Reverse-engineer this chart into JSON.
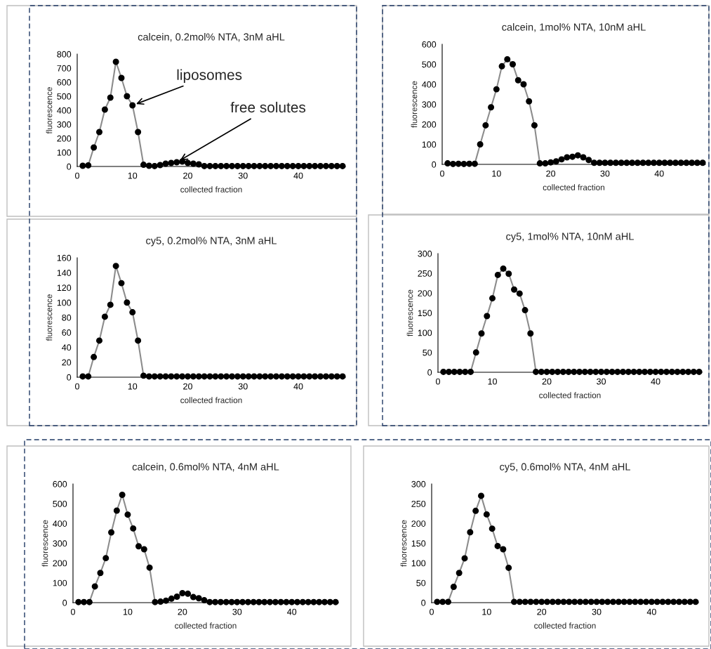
{
  "chart_data": [
    {
      "type": "line",
      "title": "calcein, 0.2mol% NTA, 3nM aHL",
      "xlabel": "collected fraction",
      "ylabel": "fluorescence",
      "marker": "circle",
      "xlim": [
        0,
        48.5
      ],
      "xticks": [
        0,
        10,
        20,
        30,
        40
      ],
      "ylim": [
        0,
        800
      ],
      "yticks": [
        0,
        100,
        200,
        300,
        400,
        500,
        600,
        700,
        800
      ],
      "grid": false,
      "legend": false,
      "x": [
        1,
        2,
        3,
        4,
        5,
        6,
        7,
        8,
        9,
        10,
        11,
        12,
        13,
        14,
        15,
        16,
        17,
        18,
        19,
        20,
        21,
        22,
        23,
        24,
        25,
        26,
        27,
        28,
        29,
        30,
        31,
        32,
        33,
        34,
        35,
        36,
        37,
        38,
        39,
        40,
        41,
        42,
        43,
        44,
        45,
        46,
        47,
        48
      ],
      "series": [
        {
          "color": "#000000",
          "values": [
            5,
            8,
            135,
            245,
            405,
            490,
            745,
            630,
            500,
            435,
            245,
            12,
            5,
            3,
            10,
            20,
            25,
            30,
            35,
            25,
            20,
            15,
            3,
            3,
            3,
            3,
            3,
            3,
            3,
            3,
            3,
            3,
            3,
            3,
            3,
            3,
            3,
            3,
            3,
            3,
            3,
            3,
            3,
            3,
            3,
            3,
            3,
            3
          ]
        }
      ],
      "annotations": [
        {
          "text": "liposomes",
          "x": 10,
          "y": 435
        },
        {
          "text": "free solutes",
          "x": 18,
          "y": 30
        }
      ]
    },
    {
      "type": "line",
      "title": "calcein, 1mol% NTA, 10nM aHL",
      "xlabel": "collected fraction",
      "ylabel": "fluorescence",
      "marker": "circle",
      "xlim": [
        0,
        48.5
      ],
      "xticks": [
        0,
        10,
        20,
        30,
        40
      ],
      "ylim": [
        0,
        600
      ],
      "yticks": [
        0,
        100,
        200,
        300,
        400,
        500,
        600
      ],
      "grid": false,
      "legend": false,
      "x": [
        1,
        2,
        3,
        4,
        5,
        6,
        7,
        8,
        9,
        10,
        11,
        12,
        13,
        14,
        15,
        16,
        17,
        18,
        19,
        20,
        21,
        22,
        23,
        24,
        25,
        26,
        27,
        28,
        29,
        30,
        31,
        32,
        33,
        34,
        35,
        36,
        37,
        38,
        39,
        40,
        41,
        42,
        43,
        44,
        45,
        46,
        47,
        48
      ],
      "series": [
        {
          "color": "#000000",
          "values": [
            5,
            2,
            3,
            2,
            3,
            3,
            100,
            195,
            285,
            375,
            490,
            525,
            500,
            420,
            400,
            315,
            195,
            5,
            5,
            10,
            15,
            25,
            35,
            38,
            45,
            35,
            22,
            8,
            8,
            8,
            8,
            8,
            8,
            8,
            8,
            8,
            8,
            8,
            8,
            8,
            8,
            8,
            8,
            8,
            8,
            8,
            8,
            8
          ]
        }
      ]
    },
    {
      "type": "line",
      "title": "cy5, 0.2mol% NTA, 3nM aHL",
      "xlabel": "collected fraction",
      "ylabel": "fluorescence",
      "marker": "circle",
      "xlim": [
        0,
        48.5
      ],
      "xticks": [
        0,
        10,
        20,
        30,
        40
      ],
      "ylim": [
        0,
        160
      ],
      "yticks": [
        0,
        20,
        40,
        60,
        80,
        100,
        120,
        140,
        160
      ],
      "grid": false,
      "legend": false,
      "x": [
        1,
        2,
        3,
        4,
        5,
        6,
        7,
        8,
        9,
        10,
        11,
        12,
        13,
        14,
        15,
        16,
        17,
        18,
        19,
        20,
        21,
        22,
        23,
        24,
        25,
        26,
        27,
        28,
        29,
        30,
        31,
        32,
        33,
        34,
        35,
        36,
        37,
        38,
        39,
        40,
        41,
        42,
        43,
        44,
        45,
        46,
        47,
        48
      ],
      "series": [
        {
          "color": "#000000",
          "values": [
            1,
            1,
            27,
            49,
            81,
            97,
            149,
            126,
            100,
            87,
            49,
            2,
            1,
            1,
            1,
            1,
            1,
            1,
            1,
            1,
            1,
            1,
            1,
            1,
            1,
            1,
            1,
            1,
            1,
            1,
            1,
            1,
            1,
            1,
            1,
            1,
            1,
            1,
            1,
            1,
            1,
            1,
            1,
            1,
            1,
            1,
            1,
            1
          ]
        }
      ]
    },
    {
      "type": "line",
      "title": "cy5, 1mol% NTA, 10nM aHL",
      "xlabel": "collected fraction",
      "ylabel": "fluorescence",
      "marker": "circle",
      "xlim": [
        0,
        48.5
      ],
      "xticks": [
        0,
        10,
        20,
        30,
        40
      ],
      "ylim": [
        0,
        300
      ],
      "yticks": [
        0,
        50,
        100,
        150,
        200,
        250,
        300
      ],
      "grid": false,
      "legend": false,
      "x": [
        1,
        2,
        3,
        4,
        5,
        6,
        7,
        8,
        9,
        10,
        11,
        12,
        13,
        14,
        15,
        16,
        17,
        18,
        19,
        20,
        21,
        22,
        23,
        24,
        25,
        26,
        27,
        28,
        29,
        30,
        31,
        32,
        33,
        34,
        35,
        36,
        37,
        38,
        39,
        40,
        41,
        42,
        43,
        44,
        45,
        46,
        47,
        48
      ],
      "series": [
        {
          "color": "#000000",
          "values": [
            1,
            1,
            1,
            1,
            1,
            1,
            50,
            98,
            142,
            187,
            246,
            262,
            249,
            209,
            199,
            157,
            98,
            1,
            1,
            1,
            1,
            1,
            1,
            1,
            1,
            1,
            1,
            1,
            1,
            1,
            1,
            1,
            1,
            1,
            1,
            1,
            1,
            1,
            1,
            1,
            1,
            1,
            1,
            1,
            1,
            1,
            1,
            1
          ]
        }
      ]
    },
    {
      "type": "line",
      "title": "calcein, 0.6mol% NTA, 4nM aHL",
      "xlabel": "collected fraction",
      "ylabel": "fluorescence",
      "marker": "circle",
      "xlim": [
        0,
        48.5
      ],
      "xticks": [
        0,
        10,
        20,
        30,
        40
      ],
      "ylim": [
        0,
        600
      ],
      "yticks": [
        0,
        100,
        200,
        300,
        400,
        500,
        600
      ],
      "grid": false,
      "legend": false,
      "x": [
        1,
        2,
        3,
        4,
        5,
        6,
        7,
        8,
        9,
        10,
        11,
        12,
        13,
        14,
        15,
        16,
        17,
        18,
        19,
        20,
        21,
        22,
        23,
        24,
        25,
        26,
        27,
        28,
        29,
        30,
        31,
        32,
        33,
        34,
        35,
        36,
        37,
        38,
        39,
        40,
        41,
        42,
        43,
        44,
        45,
        46,
        47,
        48
      ],
      "series": [
        {
          "color": "#000000",
          "values": [
            3,
            3,
            3,
            82,
            150,
            225,
            355,
            465,
            545,
            445,
            375,
            285,
            270,
            177,
            3,
            5,
            10,
            20,
            30,
            48,
            45,
            28,
            22,
            12,
            3,
            3,
            3,
            3,
            3,
            3,
            3,
            3,
            3,
            3,
            3,
            3,
            3,
            3,
            3,
            3,
            3,
            3,
            3,
            3,
            3,
            3,
            3,
            3
          ]
        }
      ]
    },
    {
      "type": "line",
      "title": "cy5, 0.6mol% NTA, 4nM aHL",
      "xlabel": "collected fraction",
      "ylabel": "fluorescence",
      "marker": "circle",
      "xlim": [
        0,
        48.5
      ],
      "xticks": [
        0,
        10,
        20,
        30,
        40
      ],
      "ylim": [
        0,
        300
      ],
      "yticks": [
        0,
        50,
        100,
        150,
        200,
        250,
        300
      ],
      "grid": false,
      "legend": false,
      "x": [
        1,
        2,
        3,
        4,
        5,
        6,
        7,
        8,
        9,
        10,
        11,
        12,
        13,
        14,
        15,
        16,
        17,
        18,
        19,
        20,
        21,
        22,
        23,
        24,
        25,
        26,
        27,
        28,
        29,
        30,
        31,
        32,
        33,
        34,
        35,
        36,
        37,
        38,
        39,
        40,
        41,
        42,
        43,
        44,
        45,
        46,
        47,
        48
      ],
      "series": [
        {
          "color": "#000000",
          "values": [
            2,
            2,
            2,
            40,
            75,
            112,
            178,
            232,
            270,
            223,
            187,
            143,
            135,
            88,
            2,
            2,
            2,
            2,
            2,
            2,
            2,
            2,
            2,
            2,
            2,
            2,
            2,
            2,
            2,
            2,
            2,
            2,
            2,
            2,
            2,
            2,
            2,
            2,
            2,
            2,
            2,
            2,
            2,
            2,
            2,
            2,
            2,
            2
          ]
        }
      ]
    }
  ]
}
